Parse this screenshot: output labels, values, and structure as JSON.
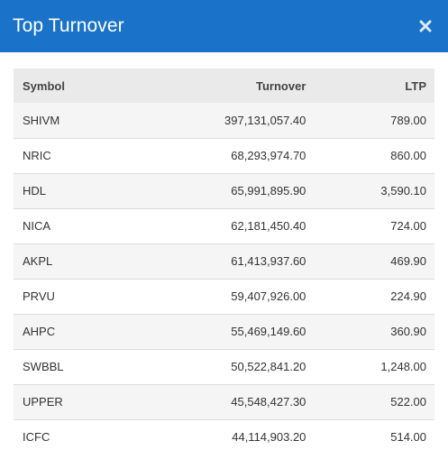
{
  "modal": {
    "title": "Top Turnover",
    "close_icon": "close-icon",
    "header_color": "#1a73c8"
  },
  "table": {
    "headers": {
      "symbol": "Symbol",
      "turnover": "Turnover",
      "ltp": "LTP"
    },
    "rows": [
      {
        "symbol": "SHIVM",
        "turnover": "397,131,057.40",
        "ltp": "789.00"
      },
      {
        "symbol": "NRIC",
        "turnover": "68,293,974.70",
        "ltp": "860.00"
      },
      {
        "symbol": "HDL",
        "turnover": "65,991,895.90",
        "ltp": "3,590.10"
      },
      {
        "symbol": "NICA",
        "turnover": "62,181,450.40",
        "ltp": "724.00"
      },
      {
        "symbol": "AKPL",
        "turnover": "61,413,937.60",
        "ltp": "469.90"
      },
      {
        "symbol": "PRVU",
        "turnover": "59,407,926.00",
        "ltp": "224.90"
      },
      {
        "symbol": "AHPC",
        "turnover": "55,469,149.60",
        "ltp": "360.90"
      },
      {
        "symbol": "SWBBL",
        "turnover": "50,522,841.20",
        "ltp": "1,248.00"
      },
      {
        "symbol": "UPPER",
        "turnover": "45,548,427.30",
        "ltp": "522.00"
      },
      {
        "symbol": "ICFC",
        "turnover": "44,114,903.20",
        "ltp": "514.00"
      }
    ]
  }
}
